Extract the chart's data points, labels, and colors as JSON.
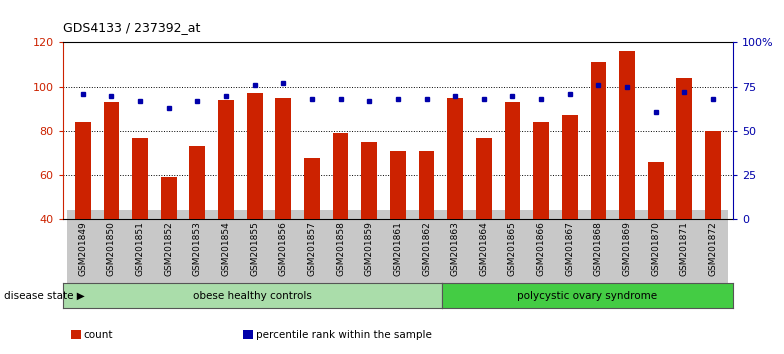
{
  "title": "GDS4133 / 237392_at",
  "samples": [
    "GSM201849",
    "GSM201850",
    "GSM201851",
    "GSM201852",
    "GSM201853",
    "GSM201854",
    "GSM201855",
    "GSM201856",
    "GSM201857",
    "GSM201858",
    "GSM201859",
    "GSM201861",
    "GSM201862",
    "GSM201863",
    "GSM201864",
    "GSM201865",
    "GSM201866",
    "GSM201867",
    "GSM201868",
    "GSM201869",
    "GSM201870",
    "GSM201871",
    "GSM201872"
  ],
  "counts": [
    84,
    93,
    77,
    59,
    73,
    94,
    97,
    95,
    68,
    79,
    75,
    71,
    71,
    95,
    77,
    93,
    84,
    87,
    111,
    116,
    66,
    104,
    80
  ],
  "percentile_ranks": [
    71,
    70,
    67,
    63,
    67,
    70,
    76,
    77,
    68,
    68,
    67,
    68,
    68,
    70,
    68,
    70,
    68,
    71,
    76,
    75,
    61,
    72,
    68
  ],
  "groups": [
    {
      "label": "obese healthy controls",
      "start": 0,
      "end": 13,
      "color": "#AADDAA"
    },
    {
      "label": "polycystic ovary syndrome",
      "start": 13,
      "end": 23,
      "color": "#44CC44"
    }
  ],
  "group_label_prefix": "disease state",
  "ylim_left": [
    40,
    120
  ],
  "ylim_right": [
    0,
    100
  ],
  "yticks_left": [
    40,
    60,
    80,
    100,
    120
  ],
  "yticks_right": [
    0,
    25,
    50,
    75,
    100
  ],
  "ytick_right_labels": [
    "0",
    "25",
    "50",
    "75",
    "100%"
  ],
  "bar_color": "#CC2200",
  "marker_color": "#0000AA",
  "legend_items": [
    {
      "label": "count",
      "color": "#CC2200"
    },
    {
      "label": "percentile rank within the sample",
      "color": "#0000AA"
    }
  ]
}
